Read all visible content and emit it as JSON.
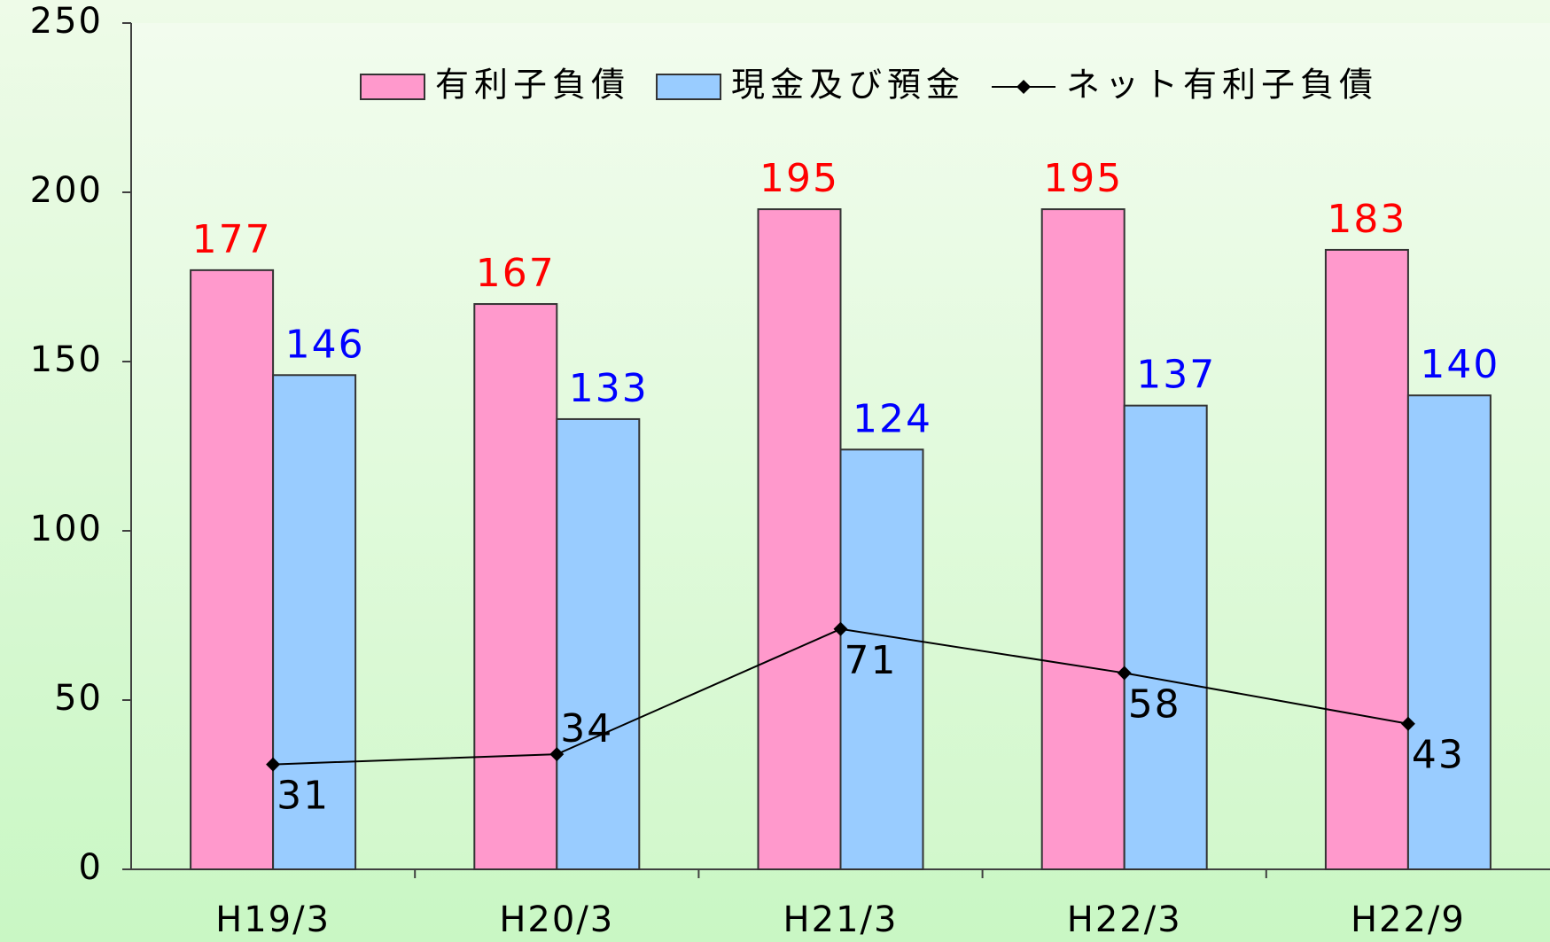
{
  "chart_data": {
    "type": "bar",
    "categories": [
      "H19/3",
      "H20/3",
      "H21/3",
      "H22/3",
      "H22/9"
    ],
    "series": [
      {
        "name": "有利子負債",
        "type": "bar",
        "color": "#ff99cc",
        "label_color": "#ff0000",
        "values": [
          177,
          167,
          195,
          195,
          183
        ]
      },
      {
        "name": "現金及び預金",
        "type": "bar",
        "color": "#99ccff",
        "label_color": "#0000ff",
        "values": [
          146,
          133,
          124,
          137,
          140
        ]
      },
      {
        "name": "ネット有利子負債",
        "type": "line",
        "color": "#000000",
        "label_color": "#000000",
        "values": [
          31,
          34,
          71,
          58,
          43
        ]
      }
    ],
    "ylim": [
      0,
      250
    ],
    "yticks": [
      0,
      50,
      100,
      150,
      200,
      250
    ],
    "legend": "top"
  }
}
